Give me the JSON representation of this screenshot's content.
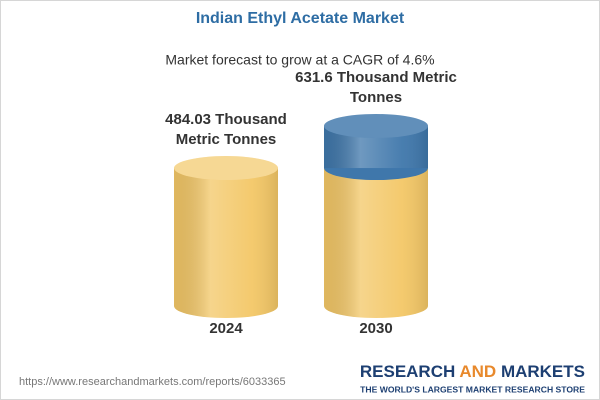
{
  "chart_data": {
    "type": "cylinder",
    "title": "Indian Ethyl Acetate Market",
    "subtitle": "Market forecast to grow at a CAGR of 4.6%",
    "categories": [
      "2024",
      "2030"
    ],
    "values": [
      484.03,
      631.6
    ],
    "value_labels": [
      "484.03 Thousand Metric Tonnes",
      "631.6 Thousand Metric Tonnes"
    ],
    "color": "#f3c766",
    "growth_color": "#3f77ab"
  },
  "footer": {
    "url": "https://www.researchandmarkets.com/reports/6033365",
    "brand": [
      "RESEARCH",
      "AND",
      "MARKETS"
    ],
    "tagline": "THE WORLD'S LARGEST MARKET RESEARCH STORE"
  }
}
